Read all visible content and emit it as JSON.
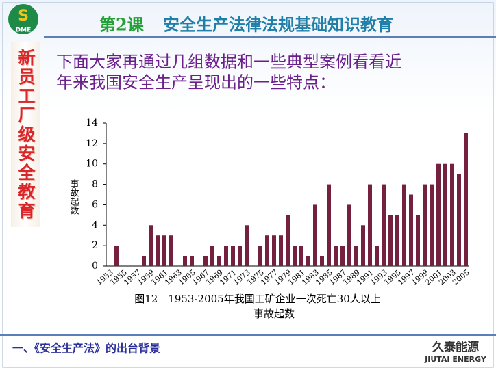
{
  "logo": "DME",
  "header": {
    "lesson": "第2课",
    "title": "安全生产法律法规基础知识教育"
  },
  "sidebar": "新员工厂级安全教育",
  "body_text": [
    "下面大家再通过几组数据和一些典型案例看看近",
    "年来我国安全生产呈现出的一些特点："
  ],
  "footer": {
    "text": "一、《安全生产法》的出台背景",
    "logo_cn": "久泰能源",
    "logo_en": "JIUTAI ENERGY"
  },
  "chart_data": {
    "type": "bar",
    "y_label": "事故起数",
    "caption": [
      "图12　1953-2005年我国工矿企业一次死亡30人以上",
      "事故起数"
    ],
    "categories": [
      "1953",
      null,
      "1955",
      null,
      "1957",
      null,
      "1959",
      null,
      "1961",
      null,
      "1963",
      null,
      "1965",
      null,
      "1967",
      null,
      "1969",
      null,
      "1971",
      null,
      "1973",
      null,
      "1975",
      null,
      "1977",
      null,
      "1979",
      null,
      "1981",
      null,
      "1983",
      null,
      "1985",
      null,
      "1987",
      null,
      "1989",
      null,
      "1991",
      null,
      "1993",
      null,
      "1995",
      null,
      "1997",
      null,
      "1999",
      null,
      "2001",
      null,
      "2003",
      null,
      "2005"
    ],
    "values": [
      0,
      2,
      0,
      0,
      0,
      1,
      4,
      3,
      3,
      3,
      0,
      1,
      1,
      0,
      1,
      2,
      1,
      2,
      2,
      2,
      4,
      0,
      2,
      3,
      3,
      3,
      5,
      2,
      2,
      1,
      6,
      1,
      8,
      2,
      2,
      6,
      2,
      4,
      8,
      2,
      8,
      5,
      5,
      8,
      7,
      5,
      8,
      8,
      10,
      10,
      10,
      9,
      13
    ],
    "color": "#74213f",
    "ylim": [
      0,
      14
    ],
    "yticks": [
      0,
      2,
      4,
      6,
      8,
      10,
      12,
      14
    ],
    "grid": false
  }
}
